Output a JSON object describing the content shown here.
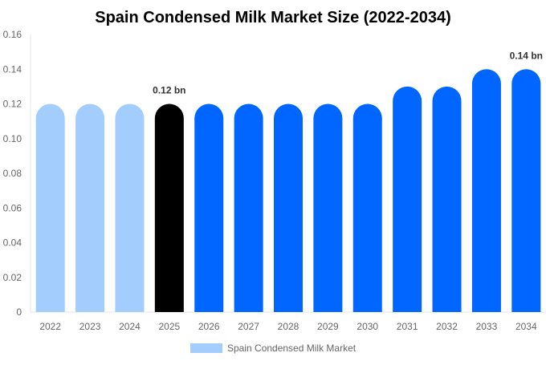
{
  "chart_data": {
    "type": "bar",
    "title": "Spain Condensed Milk Market Size (2022-2034)",
    "xlabel": "",
    "ylabel": "",
    "categories": [
      "2022",
      "2023",
      "2024",
      "2025",
      "2026",
      "2027",
      "2028",
      "2029",
      "2030",
      "2031",
      "2032",
      "2033",
      "2034"
    ],
    "series": [
      {
        "name": "Spain Condensed Milk Market",
        "values": [
          0.12,
          0.12,
          0.12,
          0.12,
          0.12,
          0.12,
          0.12,
          0.12,
          0.12,
          0.13,
          0.13,
          0.14,
          0.14
        ]
      }
    ],
    "ylim": [
      0,
      0.16
    ],
    "yticks": [
      "0",
      "0.02",
      "0.04",
      "0.06",
      "0.08",
      "0.10",
      "0.12",
      "0.14",
      "0.16"
    ],
    "data_labels": [
      {
        "category": "2025",
        "text": "0.12 bn"
      },
      {
        "category": "2034",
        "text": "0.14 bn"
      }
    ],
    "bar_colors": [
      "#a3cdfd",
      "#a3cdfd",
      "#a3cdfd",
      "#000000",
      "#0066ff",
      "#0066ff",
      "#0066ff",
      "#0066ff",
      "#0066ff",
      "#0066ff",
      "#0066ff",
      "#0066ff",
      "#0066ff"
    ],
    "legend": {
      "position": "bottom",
      "color": "#a3cdfd"
    },
    "grid": false
  }
}
